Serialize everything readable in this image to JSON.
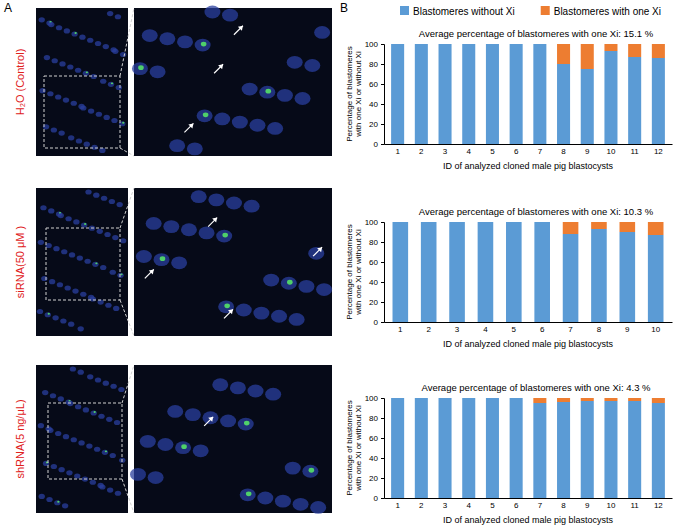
{
  "figure": {
    "panel_labels": [
      "A",
      "B"
    ],
    "image_labels": [
      "H₂O (Control)",
      "siRNA(50 μM )",
      "shRNA(5 ng/μL)"
    ]
  },
  "chart_data": [
    {
      "type": "bar",
      "stacked": true,
      "legend": "top",
      "title": "Average percentage of blastomeres with one Xi: 15.1 %",
      "xlabel": "ID of analyzed cloned male pig blastocysts",
      "ylabel": "Percentage of blastomeres with one Xi or without Xi",
      "categories": [
        "1",
        "2",
        "3",
        "4",
        "5",
        "6",
        "7",
        "8",
        "9",
        "10",
        "11",
        "12"
      ],
      "series": [
        {
          "name": "Blastomeres without Xi",
          "color": "#5b9bd5",
          "values": [
            100,
            100,
            100,
            100,
            100,
            100,
            100,
            80,
            75,
            93,
            87,
            86
          ]
        },
        {
          "name": "Blastomeres with one Xi",
          "color": "#ed7d31",
          "values": [
            0,
            0,
            0,
            0,
            0,
            0,
            0,
            20,
            25,
            7,
            13,
            14
          ]
        }
      ],
      "ylim": [
        0,
        100
      ],
      "yticks": [
        0,
        20,
        40,
        60,
        80,
        100
      ]
    },
    {
      "type": "bar",
      "stacked": true,
      "title": "Average percentage of blastomeres with one Xi: 10.3 %",
      "xlabel": "ID of analyzed cloned male pig blastocysts",
      "ylabel": "Percentage of blastomeres with one Xi or without Xi",
      "categories": [
        "1",
        "2",
        "3",
        "4",
        "5",
        "6",
        "7",
        "8",
        "9",
        "10"
      ],
      "series": [
        {
          "color": "#5b9bd5",
          "values": [
            100,
            100,
            100,
            100,
            100,
            100,
            88,
            93,
            90,
            87
          ]
        },
        {
          "color": "#ed7d31",
          "values": [
            0,
            0,
            0,
            0,
            0,
            0,
            12,
            7,
            10,
            13
          ]
        }
      ],
      "ylim": [
        0,
        100
      ],
      "yticks": [
        0,
        20,
        40,
        60,
        80,
        100
      ]
    },
    {
      "type": "bar",
      "stacked": true,
      "title": "Average percentage of blastomeres with one Xi: 4.3 %",
      "xlabel": "ID of analyzed cloned male pig blastocysts",
      "ylabel": "Percentage of blastomeres with one Xi or without Xi",
      "categories": [
        "1",
        "2",
        "3",
        "4",
        "5",
        "6",
        "7",
        "8",
        "9",
        "10",
        "11",
        "12"
      ],
      "series": [
        {
          "color": "#5b9bd5",
          "values": [
            100,
            100,
            100,
            100,
            100,
            100,
            95,
            96,
            97,
            97,
            97,
            95
          ]
        },
        {
          "color": "#ed7d31",
          "values": [
            0,
            0,
            0,
            0,
            0,
            0,
            5,
            4,
            3,
            3,
            3,
            5
          ]
        }
      ],
      "ylim": [
        0,
        100
      ],
      "yticks": [
        0,
        20,
        40,
        60,
        80,
        100
      ]
    }
  ]
}
